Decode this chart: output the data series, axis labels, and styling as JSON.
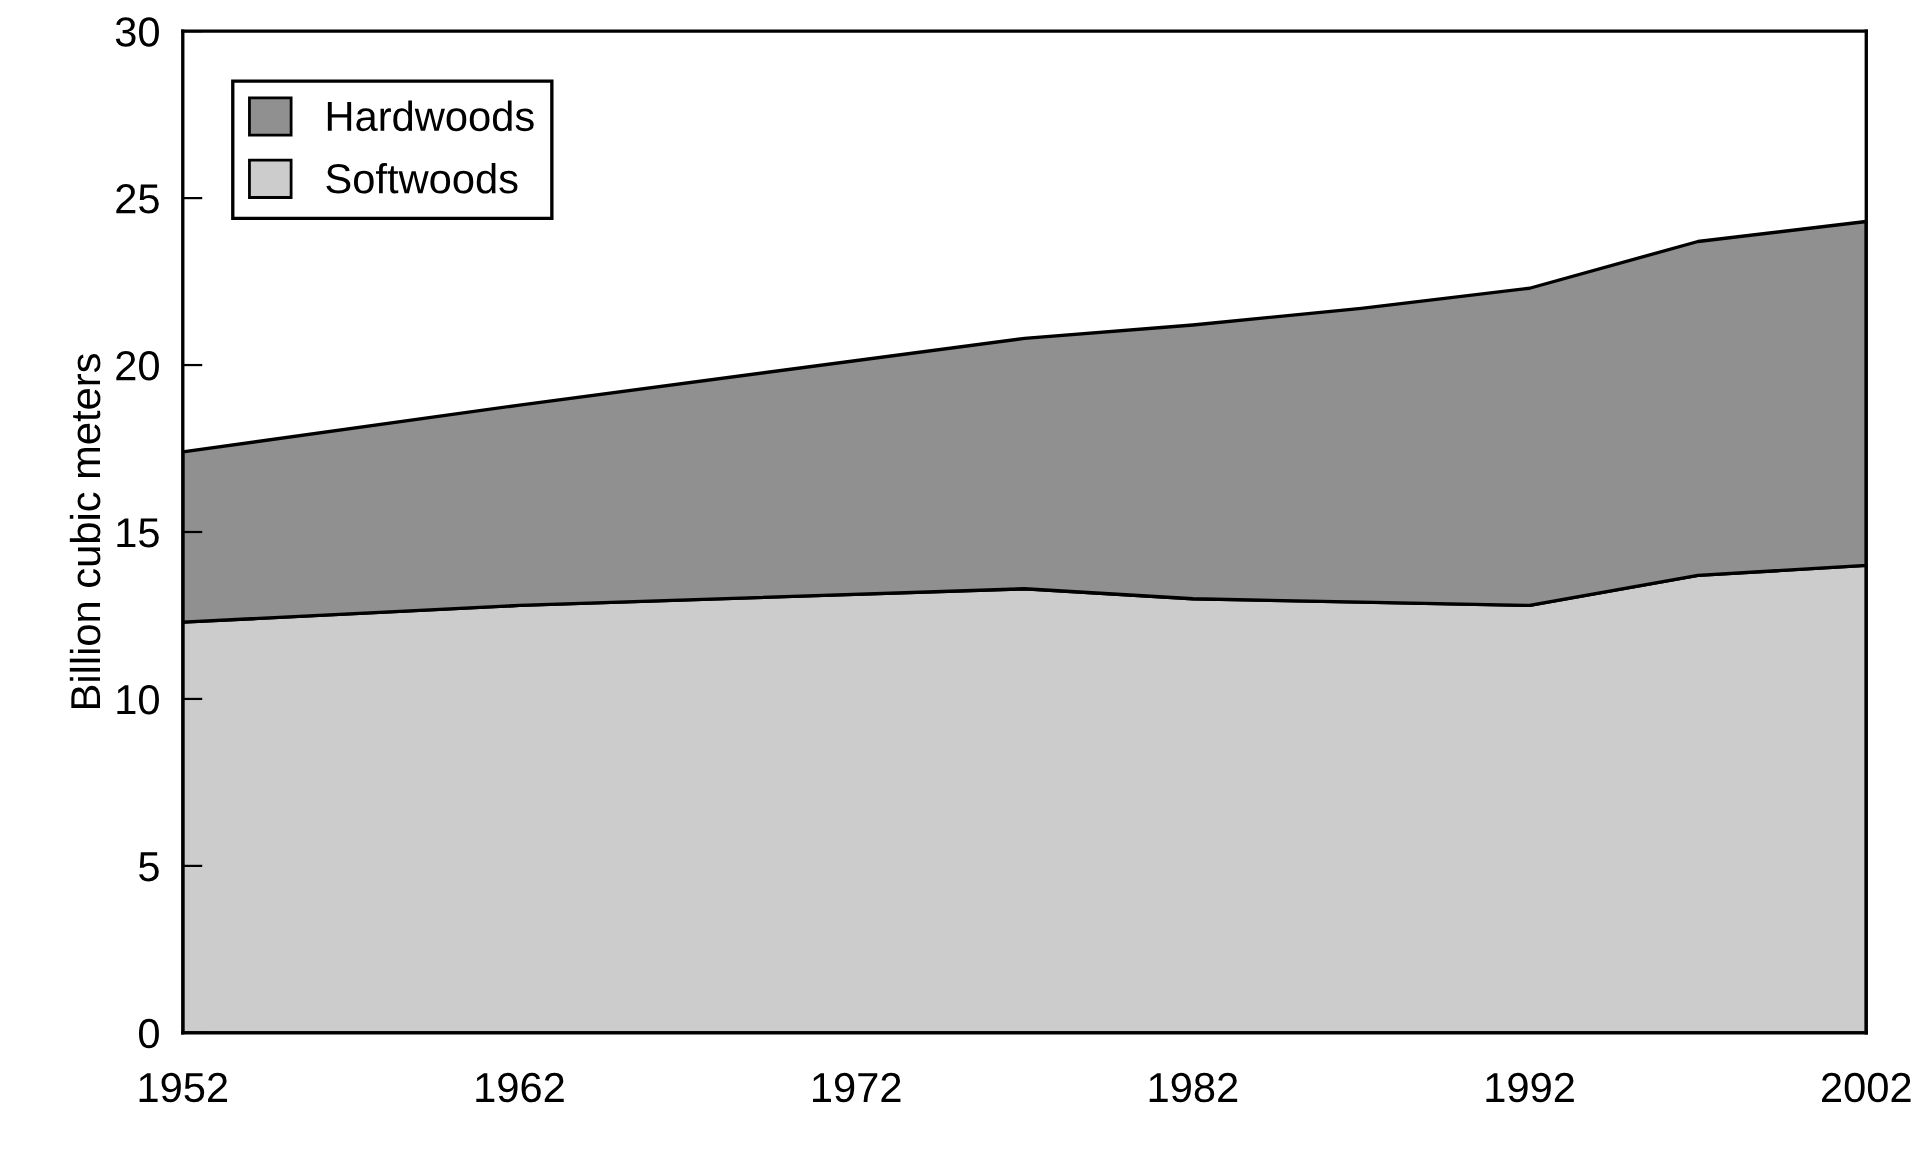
{
  "chart_data": {
    "type": "area",
    "stacked": true,
    "ylabel": "Billion cubic meters",
    "x": [
      1952,
      1962,
      1977,
      1982,
      1987,
      1992,
      1997,
      2002
    ],
    "series": [
      {
        "name": "Softwoods",
        "color": "#cccccc",
        "values": [
          12.3,
          12.8,
          13.3,
          13.0,
          12.9,
          12.8,
          13.7,
          14.0
        ]
      },
      {
        "name": "Hardwoods",
        "color": "#909090",
        "values": [
          5.1,
          6.0,
          7.5,
          8.2,
          8.8,
          9.5,
          10.0,
          10.3
        ]
      }
    ],
    "xlim": [
      1952,
      2002
    ],
    "xticks": [
      1952,
      1962,
      1972,
      1982,
      1992,
      2002
    ],
    "ylim": [
      0,
      30
    ],
    "yticks": [
      0,
      5,
      10,
      15,
      20,
      25,
      30
    ],
    "grid": false,
    "legend": "top left"
  }
}
